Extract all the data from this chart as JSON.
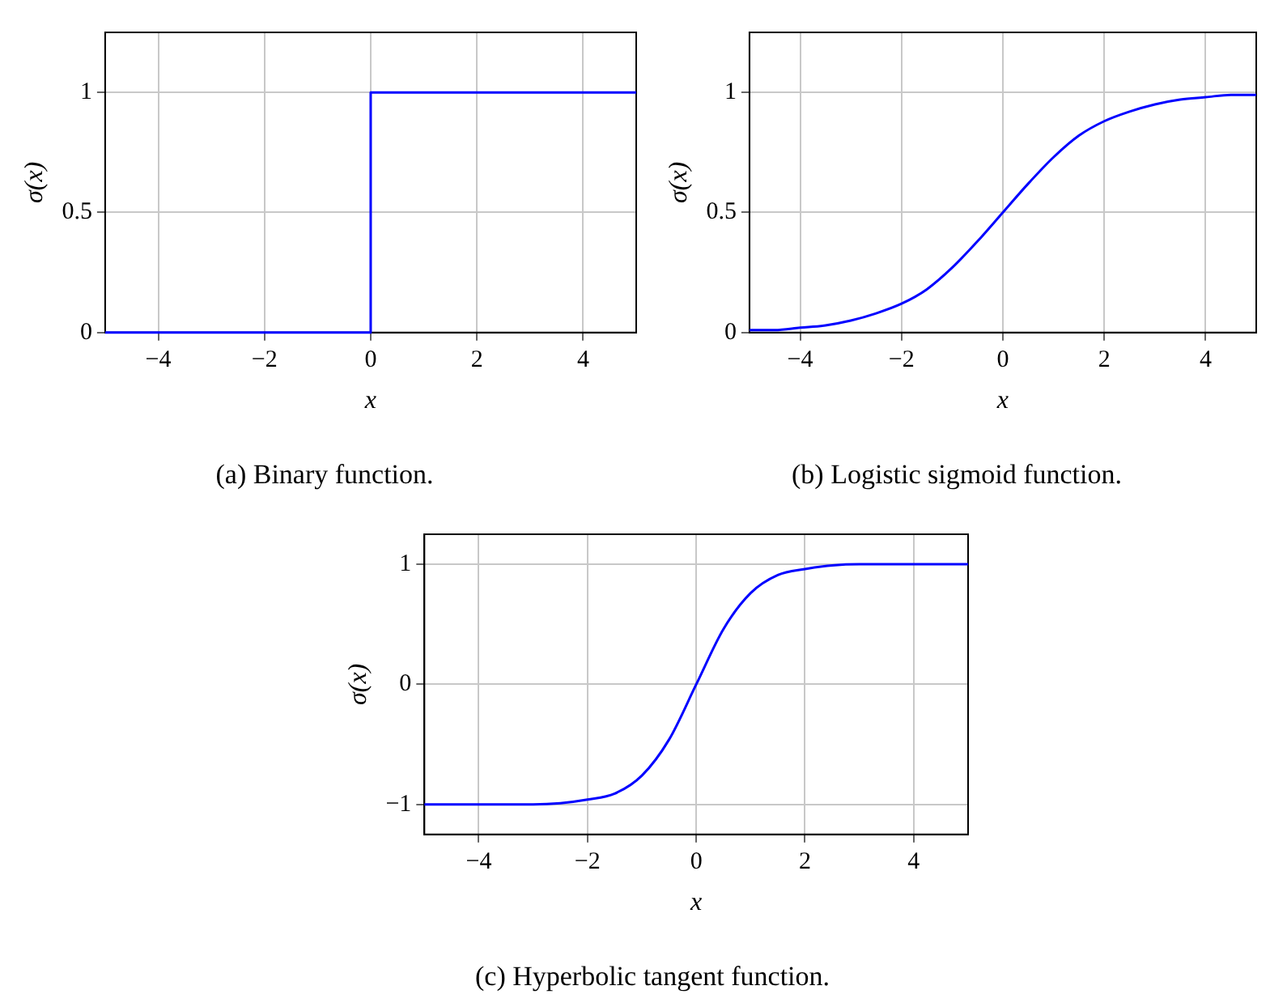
{
  "chart_data": [
    {
      "type": "step",
      "title": "(a) Binary function.",
      "xlabel": "x",
      "ylabel": "σ(x)",
      "x": [
        -5,
        0,
        5
      ],
      "xlim": [
        -5,
        5
      ],
      "xticks": [
        -4,
        -2,
        0,
        2,
        4
      ],
      "ylim": [
        0,
        1.25
      ],
      "yticks": [
        0,
        0.5,
        1
      ],
      "grid": true,
      "series": [
        {
          "color": "#0000ff",
          "values": [
            0,
            1,
            1
          ]
        }
      ]
    },
    {
      "type": "line",
      "title": "(b) Logistic sigmoid function.",
      "xlabel": "x",
      "ylabel": "σ(x)",
      "x": [
        -5,
        -4.5,
        -4,
        -3.5,
        -3,
        -2.5,
        -2,
        -1.5,
        -1,
        -0.5,
        0,
        0.5,
        1,
        1.5,
        2,
        2.5,
        3,
        3.5,
        4,
        4.5,
        5
      ],
      "xlim": [
        -5,
        5
      ],
      "xticks": [
        -4,
        -2,
        0,
        2,
        4
      ],
      "ylim": [
        0,
        1.25
      ],
      "yticks": [
        0,
        0.5,
        1
      ],
      "grid": true,
      "series": [
        {
          "color": "#0000ff",
          "values": [
            0.01,
            0.01,
            0.02,
            0.03,
            0.05,
            0.08,
            0.12,
            0.18,
            0.27,
            0.38,
            0.5,
            0.62,
            0.73,
            0.82,
            0.88,
            0.92,
            0.95,
            0.97,
            0.98,
            0.99,
            0.99
          ]
        }
      ]
    },
    {
      "type": "line",
      "title": "(c) Hyperbolic tangent function.",
      "xlabel": "x",
      "ylabel": "σ(x)",
      "x": [
        -5,
        -4,
        -3,
        -2.5,
        -2,
        -1.5,
        -1,
        -0.5,
        0,
        0.5,
        1,
        1.5,
        2,
        2.5,
        3,
        4,
        5
      ],
      "xlim": [
        -5,
        5
      ],
      "xticks": [
        -4,
        -2,
        0,
        2,
        4
      ],
      "ylim": [
        -1.25,
        1.25
      ],
      "yticks": [
        -1,
        0,
        1
      ],
      "grid": true,
      "series": [
        {
          "color": "#0000ff",
          "values": [
            -1,
            -1,
            -1,
            -0.99,
            -0.96,
            -0.91,
            -0.76,
            -0.46,
            0,
            0.46,
            0.76,
            0.91,
            0.96,
            0.99,
            1,
            1,
            1
          ]
        }
      ]
    }
  ]
}
